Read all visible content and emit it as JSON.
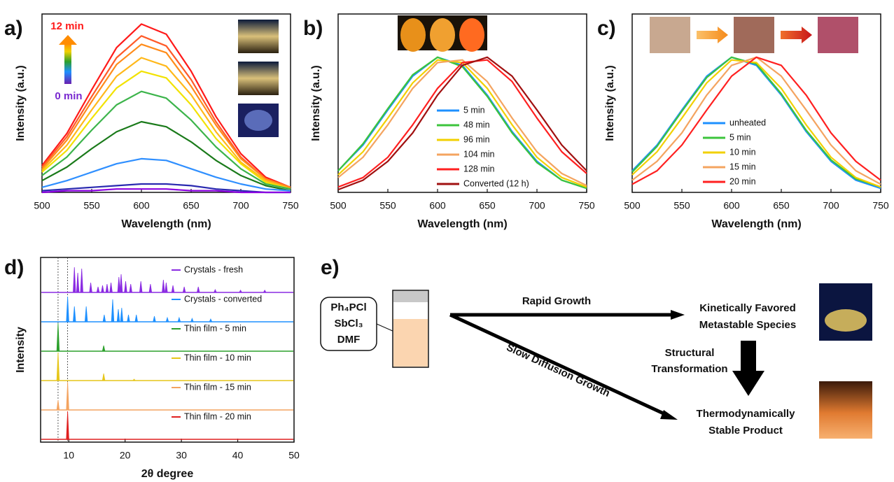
{
  "chart_data": [
    {
      "type": "line",
      "panel_label": "a)",
      "x_label": "Wavelength (nm)",
      "y_label": "Intensity (a.u.)",
      "annotations": [
        "12 min",
        "0 min"
      ],
      "xlim": [
        500,
        750
      ],
      "xticks": [
        500,
        550,
        600,
        650,
        700,
        750
      ],
      "ylim": [
        0,
        1.06
      ],
      "x": [
        500,
        525,
        550,
        575,
        600,
        625,
        650,
        675,
        700,
        725,
        750
      ],
      "series": [
        {
          "color": "#ff1a1a",
          "values": [
            0.16,
            0.35,
            0.61,
            0.86,
            1.0,
            0.94,
            0.72,
            0.45,
            0.23,
            0.09,
            0.03
          ]
        },
        {
          "color": "#ff5a28",
          "values": [
            0.15,
            0.33,
            0.57,
            0.8,
            0.93,
            0.87,
            0.67,
            0.42,
            0.21,
            0.08,
            0.03
          ]
        },
        {
          "color": "#ff8c1a",
          "values": [
            0.14,
            0.31,
            0.54,
            0.76,
            0.88,
            0.83,
            0.63,
            0.4,
            0.2,
            0.08,
            0.03
          ]
        },
        {
          "color": "#ffb81a",
          "values": [
            0.13,
            0.28,
            0.49,
            0.69,
            0.8,
            0.75,
            0.58,
            0.36,
            0.18,
            0.07,
            0.02
          ]
        },
        {
          "color": "#f2e200",
          "values": [
            0.12,
            0.25,
            0.44,
            0.62,
            0.72,
            0.68,
            0.52,
            0.32,
            0.17,
            0.06,
            0.02
          ]
        },
        {
          "color": "#3cb44b",
          "values": [
            0.1,
            0.21,
            0.37,
            0.52,
            0.6,
            0.56,
            0.43,
            0.27,
            0.14,
            0.05,
            0.02
          ]
        },
        {
          "color": "#1a7a1a",
          "values": [
            0.07,
            0.15,
            0.26,
            0.36,
            0.42,
            0.39,
            0.3,
            0.19,
            0.1,
            0.04,
            0.01
          ]
        },
        {
          "color": "#2f8fff",
          "values": [
            0.03,
            0.07,
            0.12,
            0.17,
            0.2,
            0.19,
            0.14,
            0.09,
            0.05,
            0.02,
            0.01
          ]
        },
        {
          "color": "#2a2ab0",
          "values": [
            0.01,
            0.02,
            0.03,
            0.04,
            0.05,
            0.05,
            0.04,
            0.02,
            0.01,
            0.0,
            0.0
          ]
        },
        {
          "color": "#8a00e0",
          "values": [
            0.0,
            0.01,
            0.01,
            0.02,
            0.02,
            0.02,
            0.01,
            0.01,
            0.0,
            0.0,
            0.0
          ]
        }
      ]
    },
    {
      "type": "line",
      "panel_label": "b)",
      "x_label": "Wavelength (nm)",
      "y_label": "Intensity (a.u.)",
      "xlim": [
        500,
        750
      ],
      "xticks": [
        500,
        550,
        600,
        650,
        700,
        750
      ],
      "ylim": [
        0,
        1.32
      ],
      "x": [
        500,
        525,
        550,
        575,
        600,
        625,
        650,
        675,
        700,
        725,
        750
      ],
      "series": [
        {
          "name": "5 min",
          "color": "#1e90ff",
          "values": [
            0.16,
            0.35,
            0.61,
            0.86,
            1.0,
            0.94,
            0.72,
            0.45,
            0.23,
            0.09,
            0.03
          ]
        },
        {
          "name": "48 min",
          "color": "#3cc43c",
          "values": [
            0.16,
            0.36,
            0.62,
            0.87,
            1.0,
            0.93,
            0.71,
            0.44,
            0.22,
            0.09,
            0.03
          ]
        },
        {
          "name": "96 min",
          "color": "#f2d000",
          "values": [
            0.13,
            0.3,
            0.55,
            0.81,
            0.98,
            0.96,
            0.77,
            0.5,
            0.26,
            0.11,
            0.04
          ]
        },
        {
          "name": "104 min",
          "color": "#f4a460",
          "values": [
            0.11,
            0.26,
            0.5,
            0.77,
            0.96,
            0.98,
            0.82,
            0.55,
            0.3,
            0.14,
            0.05
          ]
        },
        {
          "name": "128 min",
          "color": "#ff2020",
          "values": [
            0.04,
            0.11,
            0.26,
            0.5,
            0.77,
            0.96,
            0.98,
            0.82,
            0.55,
            0.3,
            0.14
          ]
        },
        {
          "name": "Converted (12 h)",
          "color": "#a01010",
          "values": [
            0.02,
            0.09,
            0.23,
            0.44,
            0.72,
            0.94,
            1.0,
            0.86,
            0.61,
            0.35,
            0.16
          ]
        }
      ]
    },
    {
      "type": "line",
      "panel_label": "c)",
      "x_label": "Wavelength (nm)",
      "y_label": "Intensity (a.u.)",
      "xlim": [
        500,
        750
      ],
      "xticks": [
        500,
        550,
        600,
        650,
        700,
        750
      ],
      "ylim": [
        0,
        1.32
      ],
      "x": [
        500,
        525,
        550,
        575,
        600,
        625,
        650,
        675,
        700,
        725,
        750
      ],
      "series": [
        {
          "name": "unheated",
          "color": "#1e90ff",
          "values": [
            0.16,
            0.35,
            0.61,
            0.86,
            1.0,
            0.94,
            0.72,
            0.45,
            0.23,
            0.09,
            0.03
          ]
        },
        {
          "name": "5 min",
          "color": "#3cc43c",
          "values": [
            0.15,
            0.34,
            0.6,
            0.85,
            1.0,
            0.95,
            0.73,
            0.46,
            0.24,
            0.1,
            0.04
          ]
        },
        {
          "name": "10 min",
          "color": "#f2d000",
          "values": [
            0.13,
            0.3,
            0.55,
            0.81,
            0.98,
            0.96,
            0.77,
            0.5,
            0.26,
            0.11,
            0.04
          ]
        },
        {
          "name": "15 min",
          "color": "#f4a460",
          "values": [
            0.09,
            0.23,
            0.44,
            0.72,
            0.94,
            1.0,
            0.86,
            0.61,
            0.35,
            0.16,
            0.06
          ]
        },
        {
          "name": "20 min",
          "color": "#ff2020",
          "values": [
            0.06,
            0.16,
            0.35,
            0.61,
            0.86,
            1.0,
            0.94,
            0.72,
            0.44,
            0.23,
            0.09
          ]
        }
      ]
    },
    {
      "type": "stick",
      "panel_label": "d)",
      "x_label": "2θ degree",
      "y_label": "Intensity",
      "xlim": [
        5,
        50
      ],
      "xticks": [
        10,
        20,
        30,
        40,
        50
      ],
      "vlines": [
        8.1,
        9.8
      ],
      "series": [
        {
          "name": "Crystals - fresh",
          "color": "#8a2be2",
          "x": [
            11,
            11.6,
            12.3,
            13.9,
            15.2,
            16,
            16.8,
            17.5,
            18.9,
            19.3,
            20.1,
            21,
            22.8,
            24.5,
            26.8,
            27.3,
            28.5,
            30.5,
            33,
            36,
            40.5,
            44.8
          ],
          "values": [
            0.9,
            0.7,
            0.85,
            0.35,
            0.2,
            0.25,
            0.3,
            0.35,
            0.55,
            0.65,
            0.4,
            0.3,
            0.4,
            0.3,
            0.45,
            0.35,
            0.25,
            0.2,
            0.2,
            0.1,
            0.08,
            0.08
          ]
        },
        {
          "name": "Crystals - converted",
          "color": "#1e90ff",
          "x": [
            9.8,
            11,
            13.1,
            16.3,
            17.8,
            18.8,
            19.4,
            20.6,
            22,
            25.2,
            27.5,
            29.6,
            31.9,
            35.2
          ],
          "values": [
            0.9,
            0.55,
            0.55,
            0.25,
            0.8,
            0.45,
            0.5,
            0.25,
            0.25,
            0.2,
            0.15,
            0.15,
            0.12,
            0.1
          ]
        },
        {
          "name": "Thin film - 5 min",
          "color": "#2ca02c",
          "x": [
            8.1,
            16.2
          ],
          "values": [
            1.0,
            0.2
          ]
        },
        {
          "name": "Thin film - 10 min",
          "color": "#e6c619",
          "x": [
            8.1,
            16.2,
            21.6
          ],
          "values": [
            1.0,
            0.25,
            0.05
          ]
        },
        {
          "name": "Thin film - 15 min",
          "color": "#f4a460",
          "x": [
            8.1,
            9.8
          ],
          "values": [
            0.35,
            1.0
          ]
        },
        {
          "name": "Thin film - 20 min",
          "color": "#e02020",
          "x": [
            9.8
          ],
          "values": [
            1.0
          ]
        }
      ]
    }
  ],
  "diagram": {
    "panel_label": "e)",
    "reagents": [
      "Ph₄PCl",
      "SbCl₃",
      "DMF"
    ],
    "edges": [
      {
        "label": "Rapid Growth"
      },
      {
        "label": "Slow Diffusion Growth"
      },
      {
        "label": [
          "Structural",
          "Transformation"
        ]
      }
    ],
    "nodes": [
      {
        "label": [
          "Kinetically Favored",
          "Metastable Species"
        ]
      },
      {
        "label": [
          "Thermodynamically",
          "Stable Product"
        ]
      }
    ]
  }
}
